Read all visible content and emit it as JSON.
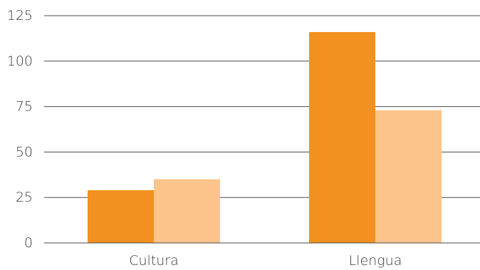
{
  "chart_data": {
    "type": "bar",
    "title": "",
    "xlabel": "",
    "ylabel": "",
    "categories": [
      "Cultura",
      "Llengua"
    ],
    "series": [
      {
        "values": [
          29,
          116
        ],
        "color": "#f39120"
      },
      {
        "values": [
          35,
          73
        ],
        "color": "#fdc48b"
      }
    ],
    "ylim": [
      0,
      125
    ],
    "yticks": [
      0,
      25,
      50,
      75,
      100,
      125
    ],
    "ytick_labels": [
      "0",
      "25",
      "50",
      "75",
      "100",
      "125"
    ],
    "grid": true,
    "legend": "none"
  }
}
